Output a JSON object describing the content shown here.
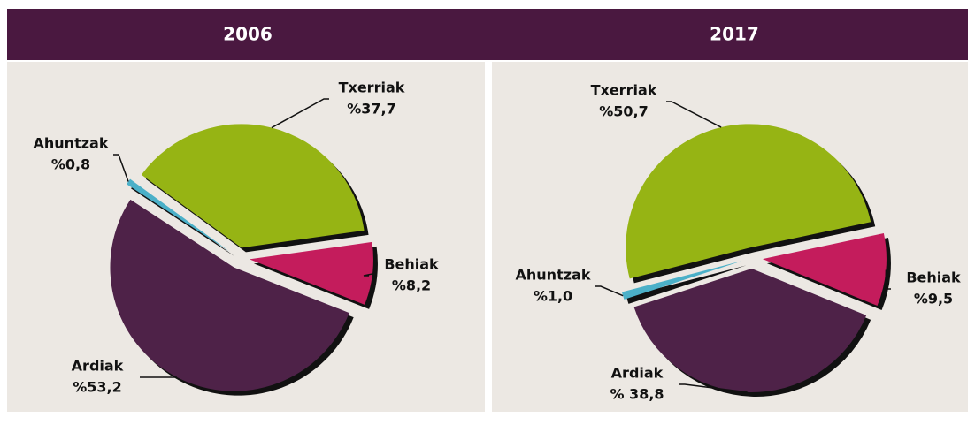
{
  "chart_data": [
    {
      "type": "pie",
      "title": "2006",
      "categories": [
        "Behiak",
        "Ardiak",
        "Ahuntzak",
        "Txerriak"
      ],
      "values": [
        8.2,
        53.2,
        0.8,
        37.7
      ],
      "value_labels": [
        "%8,2",
        "%53,2",
        "%0,8",
        "%37,7"
      ],
      "colors": [
        "#c41c5c",
        "#4e2248",
        "#4bb0c8",
        "#96b414"
      ]
    },
    {
      "type": "pie",
      "title": "2017",
      "categories": [
        "Behiak",
        "Ardiak",
        "Ahuntzak",
        "Txerriak"
      ],
      "values": [
        9.5,
        38.8,
        1.0,
        50.7
      ],
      "value_labels": [
        "%9,5",
        "% 38,8",
        "%1,0",
        "%50,7"
      ],
      "colors": [
        "#c41c5c",
        "#4e2248",
        "#4bb0c8",
        "#96b414"
      ]
    }
  ]
}
